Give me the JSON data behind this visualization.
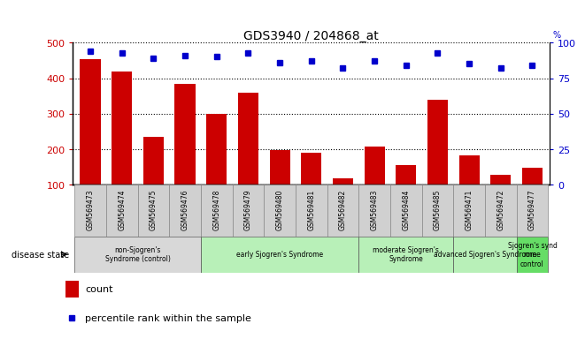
{
  "title": "GDS3940 / 204868_at",
  "samples": [
    "GSM569473",
    "GSM569474",
    "GSM569475",
    "GSM569476",
    "GSM569478",
    "GSM569479",
    "GSM569480",
    "GSM569481",
    "GSM569482",
    "GSM569483",
    "GSM569484",
    "GSM569485",
    "GSM569471",
    "GSM569472",
    "GSM569477"
  ],
  "counts": [
    453,
    418,
    235,
    384,
    300,
    358,
    197,
    190,
    118,
    207,
    155,
    340,
    182,
    128,
    148
  ],
  "percentiles": [
    94,
    93,
    89,
    91,
    90,
    93,
    86,
    87,
    82,
    87,
    84,
    93,
    85,
    82,
    84
  ],
  "bar_color": "#cc0000",
  "dot_color": "#0000cc",
  "ylim_left": [
    100,
    500
  ],
  "ylim_right": [
    0,
    100
  ],
  "yticks_left": [
    100,
    200,
    300,
    400,
    500
  ],
  "yticks_right": [
    0,
    25,
    50,
    75,
    100
  ],
  "groups": [
    {
      "label": "non-Sjogren's\nSyndrome (control)",
      "start": 0,
      "end": 3,
      "color": "#d8d8d8"
    },
    {
      "label": "early Sjogren's Syndrome",
      "start": 4,
      "end": 8,
      "color": "#b8f0b8"
    },
    {
      "label": "moderate Sjogren's\nSyndrome",
      "start": 9,
      "end": 11,
      "color": "#b8f0b8"
    },
    {
      "label": "advanced Sjogren's Syndrome",
      "start": 12,
      "end": 13,
      "color": "#b8f0b8"
    },
    {
      "label": "Sjogren's synd\nrome\ncontrol",
      "start": 14,
      "end": 14,
      "color": "#66dd66"
    }
  ],
  "legend_count_label": "count",
  "legend_pct_label": "percentile rank within the sample",
  "disease_state_label": "disease state"
}
